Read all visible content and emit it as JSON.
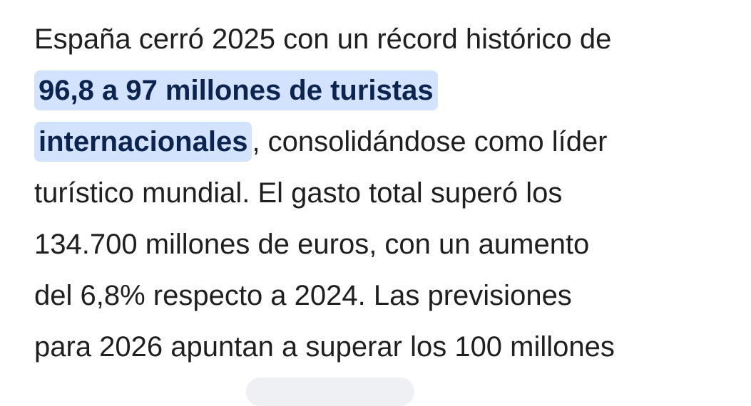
{
  "paragraph": {
    "lines": [
      [
        {
          "text": "España cerró 2025 con un récord histórico de"
        }
      ],
      [
        {
          "text": "96,8 a 97 millones de turistas",
          "highlighted": true
        }
      ],
      [
        {
          "text": "internacionales",
          "highlighted": true
        },
        {
          "text": ", consolidándose como líder"
        }
      ],
      [
        {
          "text": "turístico mundial. El gasto total superó los"
        }
      ],
      [
        {
          "text": "134.700 millones de euros, con un aumento"
        }
      ],
      [
        {
          "text": "del 6,8% respecto a 2024. Las previsiones"
        }
      ],
      [
        {
          "text": "para 2026 apuntan a superar los 100 millones"
        }
      ]
    ]
  }
}
